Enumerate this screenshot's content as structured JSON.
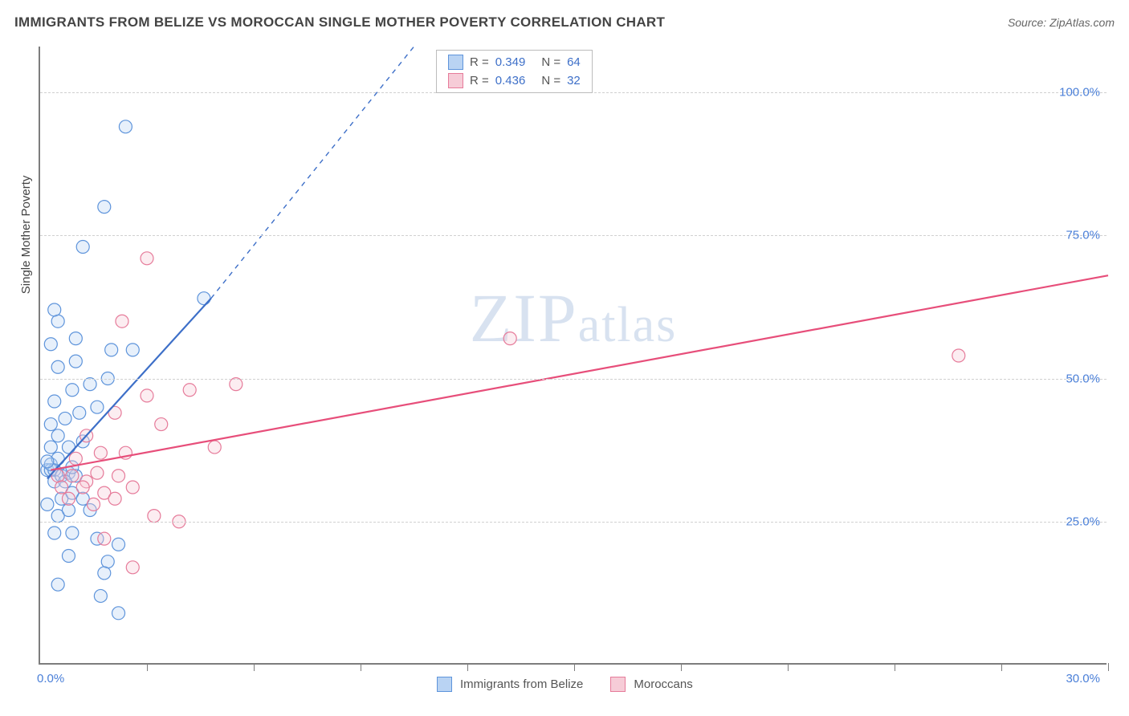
{
  "title": "IMMIGRANTS FROM BELIZE VS MOROCCAN SINGLE MOTHER POVERTY CORRELATION CHART",
  "source_label": "Source: ZipAtlas.com",
  "y_axis_label": "Single Mother Poverty",
  "watermark": "ZIPatlas",
  "chart": {
    "type": "scatter",
    "xlim": [
      0,
      30
    ],
    "ylim": [
      0,
      108
    ],
    "y_gridlines": [
      25,
      50,
      75,
      100
    ],
    "y_tick_labels": [
      "25.0%",
      "50.0%",
      "75.0%",
      "100.0%"
    ],
    "x_tick_positions": [
      0,
      3,
      6,
      9,
      12,
      15,
      18,
      21,
      24,
      27,
      30
    ],
    "x_label_min": "0.0%",
    "x_label_max": "30.0%",
    "background_color": "#ffffff",
    "grid_color": "#d0d0d0",
    "axis_color": "#7d7d7d",
    "tick_label_color": "#4a7fd8",
    "tick_label_fontsize": 15,
    "point_radius": 8,
    "series": [
      {
        "name": "Immigrants from Belize",
        "fill": "#b9d3f3",
        "stroke": "#5e94db",
        "r_value": "0.349",
        "n_value": "64",
        "trend": {
          "x1": 0.2,
          "y1": 32.5,
          "x2": 4.8,
          "y2": 64,
          "dashed_extend": true,
          "dash_to_x": 10.5,
          "dash_to_y": 108,
          "stroke": "#3d6fc8",
          "width": 2.2
        },
        "points": [
          [
            0.2,
            34
          ],
          [
            0.3,
            34
          ],
          [
            0.4,
            34
          ],
          [
            0.3,
            35
          ],
          [
            0.5,
            36
          ],
          [
            0.2,
            35.5
          ],
          [
            0.4,
            32
          ],
          [
            0.6,
            33
          ],
          [
            0.8,
            33.5
          ],
          [
            1.0,
            33
          ],
          [
            0.7,
            32
          ],
          [
            0.9,
            34.5
          ],
          [
            0.2,
            28
          ],
          [
            0.6,
            29
          ],
          [
            0.9,
            30
          ],
          [
            1.2,
            29
          ],
          [
            0.5,
            26
          ],
          [
            0.8,
            27
          ],
          [
            1.4,
            27
          ],
          [
            0.4,
            23
          ],
          [
            0.9,
            23
          ],
          [
            1.6,
            22
          ],
          [
            2.2,
            21
          ],
          [
            0.8,
            19
          ],
          [
            1.9,
            18
          ],
          [
            0.5,
            14
          ],
          [
            1.8,
            16
          ],
          [
            1.7,
            12
          ],
          [
            2.2,
            9
          ],
          [
            0.3,
            38
          ],
          [
            0.8,
            38
          ],
          [
            1.2,
            39
          ],
          [
            0.5,
            40
          ],
          [
            0.3,
            42
          ],
          [
            0.7,
            43
          ],
          [
            1.1,
            44
          ],
          [
            1.6,
            45
          ],
          [
            0.4,
            46
          ],
          [
            0.9,
            48
          ],
          [
            1.4,
            49
          ],
          [
            1.9,
            50
          ],
          [
            0.5,
            52
          ],
          [
            1.0,
            53
          ],
          [
            0.3,
            56
          ],
          [
            1.0,
            57
          ],
          [
            0.5,
            60
          ],
          [
            2.0,
            55
          ],
          [
            0.4,
            62
          ],
          [
            2.6,
            55
          ],
          [
            4.6,
            64
          ],
          [
            1.2,
            73
          ],
          [
            1.8,
            80
          ],
          [
            2.4,
            94
          ]
        ]
      },
      {
        "name": "Moroccans",
        "fill": "#f6ccd7",
        "stroke": "#e67b9a",
        "r_value": "0.436",
        "n_value": "32",
        "trend": {
          "x1": 0.3,
          "y1": 34,
          "x2": 30,
          "y2": 68,
          "dashed_extend": false,
          "stroke": "#e74e7a",
          "width": 2.2
        },
        "points": [
          [
            0.5,
            33
          ],
          [
            0.9,
            33
          ],
          [
            1.3,
            32
          ],
          [
            1.6,
            33.5
          ],
          [
            2.2,
            33
          ],
          [
            0.6,
            31
          ],
          [
            1.2,
            31
          ],
          [
            1.8,
            30
          ],
          [
            2.6,
            31
          ],
          [
            0.8,
            29
          ],
          [
            1.5,
            28
          ],
          [
            2.1,
            29
          ],
          [
            3.2,
            26
          ],
          [
            3.9,
            25
          ],
          [
            1.8,
            22
          ],
          [
            2.6,
            17
          ],
          [
            1.0,
            36
          ],
          [
            1.7,
            37
          ],
          [
            2.4,
            37
          ],
          [
            1.3,
            40
          ],
          [
            3.4,
            42
          ],
          [
            2.1,
            44
          ],
          [
            4.9,
            38
          ],
          [
            3.0,
            47
          ],
          [
            4.2,
            48
          ],
          [
            5.5,
            49
          ],
          [
            2.3,
            60
          ],
          [
            3.0,
            71
          ],
          [
            13.2,
            57
          ],
          [
            25.8,
            54
          ]
        ]
      }
    ]
  },
  "legend_top_rows": [
    {
      "swatch": "blue",
      "r": "0.349",
      "n": "64"
    },
    {
      "swatch": "pink",
      "r": "0.436",
      "n": "32"
    }
  ],
  "legend_bottom_items": [
    {
      "swatch": "blue",
      "label": "Immigrants from Belize"
    },
    {
      "swatch": "pink",
      "label": "Moroccans"
    }
  ]
}
